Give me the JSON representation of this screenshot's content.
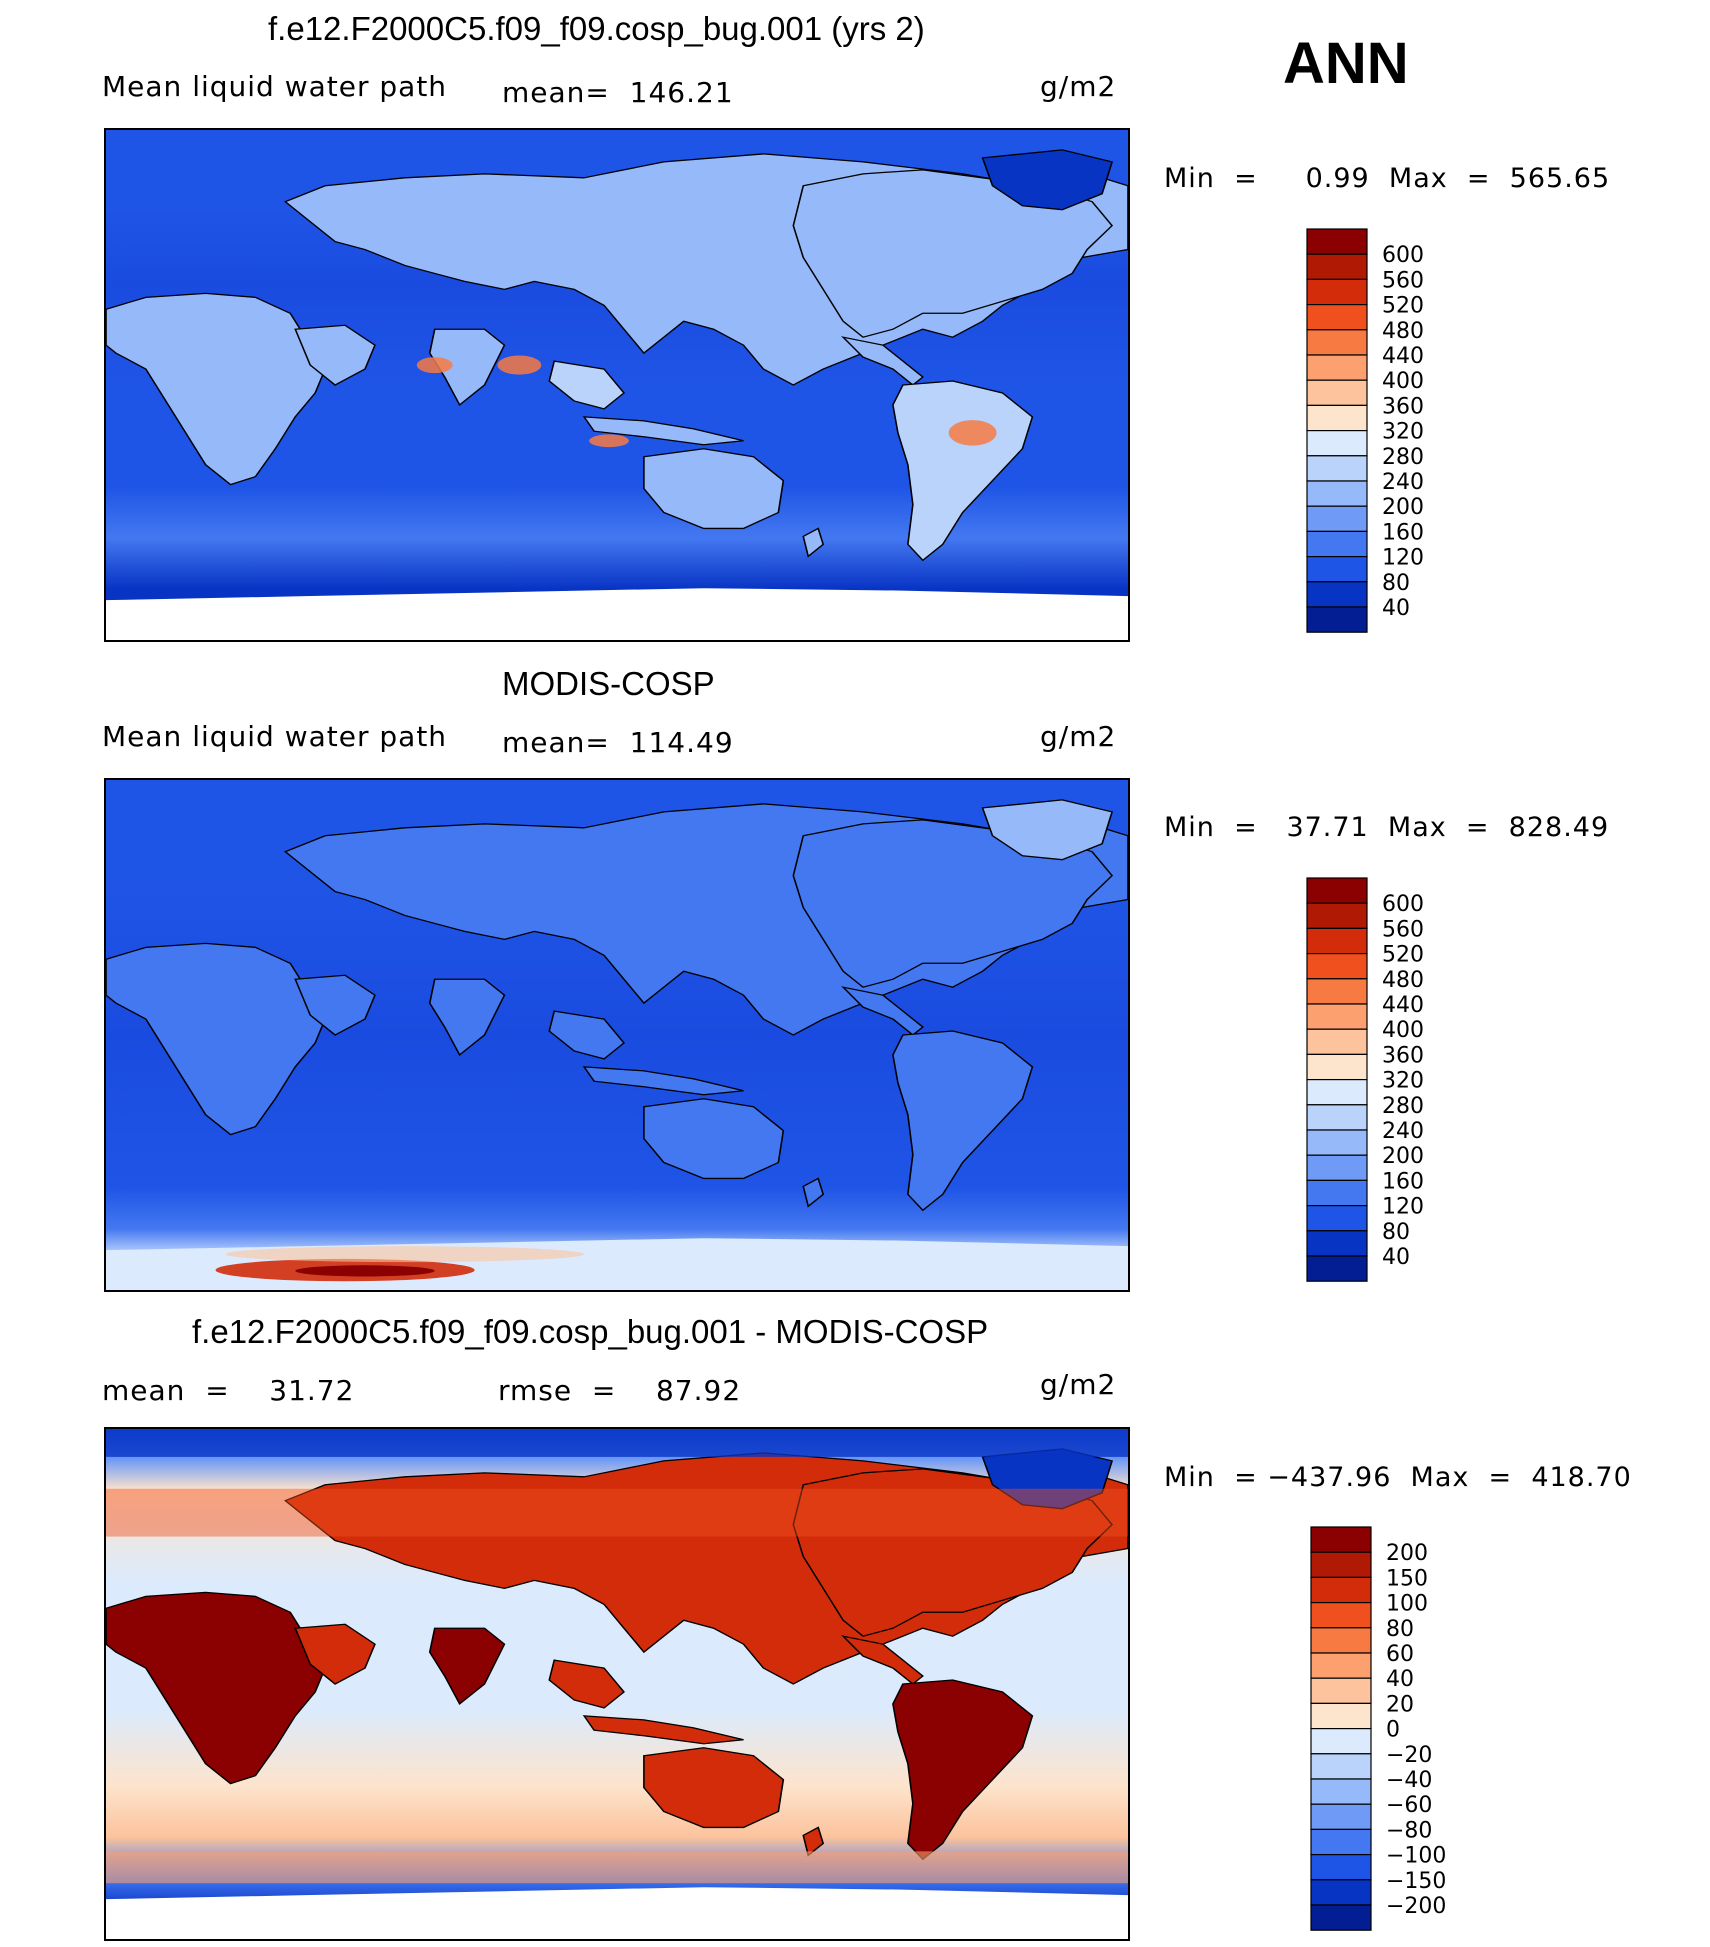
{
  "season": "ANN",
  "units": "g/m2",
  "panels": [
    {
      "id": "model",
      "title": "f.e12.F2000C5.f09_f09.cosp_bug.001 (yrs 2)",
      "left_label": "Mean liquid water path",
      "center_label": "mean=  146.21",
      "right_label": "g/m2",
      "minmax": "Min  =     0.99  Max  =  565.65",
      "colorbar_ticks": [
        "600",
        "560",
        "520",
        "480",
        "440",
        "400",
        "360",
        "320",
        "280",
        "240",
        "200",
        "160",
        "120",
        "80",
        "40"
      ],
      "colorbar_colors": [
        "#8b0000",
        "#b01a05",
        "#d22c0a",
        "#f0501e",
        "#f77a43",
        "#fba06e",
        "#fcc39d",
        "#fde4cc",
        "#dbeafc",
        "#bad3fb",
        "#96b9f9",
        "#6f9bf6",
        "#4478f1",
        "#1f55e6",
        "#0834c4",
        "#031d92"
      ],
      "map_style": "model"
    },
    {
      "id": "obs",
      "title": "MODIS-COSP",
      "left_label": "Mean liquid water path",
      "center_label": "mean=  114.49",
      "right_label": "g/m2",
      "minmax": "Min  =   37.71  Max  =  828.49",
      "colorbar_ticks": [
        "600",
        "560",
        "520",
        "480",
        "440",
        "400",
        "360",
        "320",
        "280",
        "240",
        "200",
        "160",
        "120",
        "80",
        "40"
      ],
      "colorbar_colors": [
        "#8b0000",
        "#b01a05",
        "#d22c0a",
        "#f0501e",
        "#f77a43",
        "#fba06e",
        "#fcc39d",
        "#fde4cc",
        "#dbeafc",
        "#bad3fb",
        "#96b9f9",
        "#6f9bf6",
        "#4478f1",
        "#1f55e6",
        "#0834c4",
        "#031d92"
      ],
      "map_style": "obs"
    },
    {
      "id": "diff",
      "title": "f.e12.F2000C5.f09_f09.cosp_bug.001 - MODIS-COSP",
      "left_label": "mean  =    31.72",
      "center_label": "rmse  =    87.92",
      "right_label": "g/m2",
      "minmax": "Min  = −437.96  Max  =  418.70",
      "colorbar_ticks": [
        "200",
        "150",
        "100",
        "80",
        "60",
        "40",
        "20",
        "0",
        "−20",
        "−40",
        "−60",
        "−80",
        "−100",
        "−150",
        "−200"
      ],
      "colorbar_colors": [
        "#8b0000",
        "#b01a05",
        "#d22c0a",
        "#f0501e",
        "#f77a43",
        "#fba06e",
        "#fcc39d",
        "#fde4cc",
        "#dbeafc",
        "#bad3fb",
        "#96b9f9",
        "#6f9bf6",
        "#4478f1",
        "#1f55e6",
        "#0834c4",
        "#031d92"
      ],
      "map_style": "diff"
    }
  ]
}
